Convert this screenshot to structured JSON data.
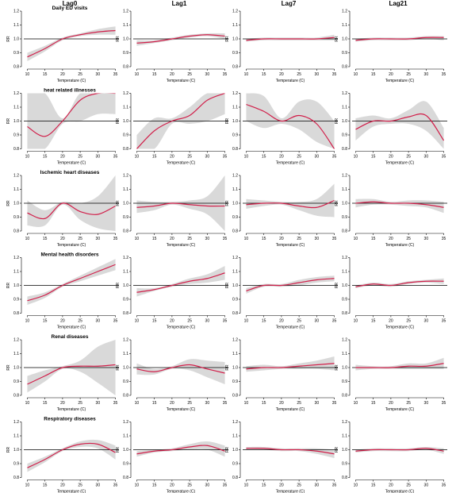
{
  "chart_data": {
    "type": "line",
    "columns": [
      "Lag0",
      "Lag1",
      "Lag7",
      "Lag21"
    ],
    "rows": [
      "Daily ED visits",
      "heat related illnesses",
      "Ischemic heart diseases",
      "Mental health disorders",
      "Renal diseases",
      "Respiratory diseases"
    ],
    "xlabel": "Temperature (C)",
    "ylabel": "RR",
    "xlim": [
      9,
      36
    ],
    "ylim": [
      0.8,
      1.2
    ],
    "x_ticks": [
      10,
      15,
      20,
      25,
      30,
      35
    ],
    "y_ticks": [
      0.8,
      0.9,
      1.0,
      1.1,
      1.2
    ],
    "y_tick_labels": [
      "0.8",
      "0.9",
      "1.0",
      "1.1",
      "1.2"
    ],
    "reference_line": 1.0,
    "colors": {
      "curve": "#d11f4a",
      "band": "#d9d9d9",
      "reference": "#000000"
    },
    "x": [
      10,
      15,
      20,
      25,
      30,
      35
    ],
    "panels": [
      [
        {
          "rr": [
            0.87,
            0.93,
            1.0,
            1.03,
            1.05,
            1.06
          ],
          "lower": [
            0.84,
            0.91,
            0.99,
            1.02,
            1.03,
            1.03
          ],
          "upper": [
            0.9,
            0.95,
            1.01,
            1.04,
            1.07,
            1.09
          ]
        },
        {
          "rr": [
            0.97,
            0.98,
            1.0,
            1.02,
            1.03,
            1.02
          ],
          "lower": [
            0.95,
            0.97,
            0.99,
            1.01,
            1.02,
            1.0
          ],
          "upper": [
            0.99,
            0.99,
            1.01,
            1.03,
            1.04,
            1.04
          ]
        },
        {
          "rr": [
            0.99,
            1.0,
            1.0,
            1.0,
            1.0,
            1.01
          ],
          "lower": [
            0.98,
            0.99,
            0.99,
            0.99,
            0.99,
            0.99
          ],
          "upper": [
            1.0,
            1.01,
            1.01,
            1.01,
            1.01,
            1.03
          ]
        },
        {
          "rr": [
            0.99,
            1.0,
            1.0,
            1.0,
            1.01,
            1.01
          ],
          "lower": [
            0.98,
            0.99,
            0.99,
            0.99,
            1.0,
            0.99
          ],
          "upper": [
            1.0,
            1.01,
            1.01,
            1.01,
            1.02,
            1.02
          ]
        }
      ],
      [
        {
          "rr": [
            0.96,
            0.89,
            1.0,
            1.15,
            1.2,
            1.2
          ],
          "lower": [
            0.8,
            0.8,
            0.98,
            1.0,
            1.05,
            1.05
          ],
          "upper": [
            1.2,
            1.2,
            1.02,
            1.2,
            1.2,
            1.2
          ]
        },
        {
          "rr": [
            0.8,
            0.93,
            1.0,
            1.04,
            1.15,
            1.2
          ],
          "lower": [
            0.8,
            0.8,
            0.98,
            0.98,
            1.0,
            1.05
          ],
          "upper": [
            0.9,
            1.02,
            1.02,
            1.1,
            1.2,
            1.2
          ]
        },
        {
          "rr": [
            1.12,
            1.07,
            1.0,
            1.04,
            0.98,
            0.8
          ],
          "lower": [
            1.0,
            0.95,
            0.98,
            0.94,
            0.85,
            0.8
          ],
          "upper": [
            1.2,
            1.18,
            1.02,
            1.14,
            1.14,
            1.0
          ]
        },
        {
          "rr": [
            0.94,
            1.0,
            1.0,
            1.03,
            1.04,
            0.86
          ],
          "lower": [
            0.86,
            0.96,
            0.98,
            0.98,
            0.93,
            0.8
          ],
          "upper": [
            1.02,
            1.04,
            1.02,
            1.08,
            1.14,
            0.95
          ]
        }
      ],
      [
        {
          "rr": [
            0.93,
            0.89,
            1.0,
            0.94,
            0.92,
            0.98
          ],
          "lower": [
            0.84,
            0.84,
            0.99,
            0.88,
            0.82,
            0.8
          ],
          "upper": [
            1.02,
            0.95,
            1.01,
            1.0,
            1.05,
            1.2
          ]
        },
        {
          "rr": [
            0.97,
            0.98,
            1.0,
            0.99,
            0.98,
            0.98
          ],
          "lower": [
            0.93,
            0.95,
            0.99,
            0.96,
            0.92,
            0.8
          ],
          "upper": [
            1.02,
            1.01,
            1.01,
            1.02,
            1.05,
            1.2
          ]
        },
        {
          "rr": [
            0.99,
            1.0,
            1.0,
            0.98,
            0.97,
            1.02
          ],
          "lower": [
            0.96,
            0.98,
            0.99,
            0.95,
            0.91,
            0.9
          ],
          "upper": [
            1.03,
            1.02,
            1.01,
            1.01,
            1.03,
            1.14
          ]
        },
        {
          "rr": [
            1.0,
            1.01,
            1.0,
            1.0,
            0.99,
            0.97
          ],
          "lower": [
            0.97,
            0.99,
            0.99,
            0.98,
            0.97,
            0.93
          ],
          "upper": [
            1.03,
            1.03,
            1.01,
            1.02,
            1.02,
            1.01
          ]
        }
      ],
      [
        {
          "rr": [
            0.89,
            0.93,
            1.0,
            1.05,
            1.1,
            1.15
          ],
          "lower": [
            0.86,
            0.91,
            0.99,
            1.03,
            1.07,
            1.11
          ],
          "upper": [
            0.92,
            0.95,
            1.01,
            1.07,
            1.13,
            1.19
          ]
        },
        {
          "rr": [
            0.95,
            0.97,
            1.0,
            1.03,
            1.05,
            1.09
          ],
          "lower": [
            0.92,
            0.96,
            0.99,
            1.01,
            1.02,
            1.04
          ],
          "upper": [
            0.98,
            0.98,
            1.01,
            1.05,
            1.08,
            1.14
          ]
        },
        {
          "rr": [
            0.96,
            1.0,
            1.0,
            1.02,
            1.04,
            1.05
          ],
          "lower": [
            0.94,
            0.99,
            0.99,
            1.0,
            1.02,
            1.03
          ],
          "upper": [
            0.98,
            1.01,
            1.01,
            1.04,
            1.06,
            1.07
          ]
        },
        {
          "rr": [
            0.99,
            1.01,
            1.0,
            1.02,
            1.03,
            1.03
          ],
          "lower": [
            0.98,
            1.0,
            0.99,
            1.01,
            1.02,
            1.01
          ],
          "upper": [
            1.0,
            1.02,
            1.01,
            1.03,
            1.04,
            1.05
          ]
        }
      ],
      [
        {
          "rr": [
            0.88,
            0.94,
            1.0,
            1.01,
            1.01,
            1.02
          ],
          "lower": [
            0.82,
            0.9,
            0.99,
            0.97,
            0.89,
            0.8
          ],
          "upper": [
            0.94,
            0.98,
            1.01,
            1.05,
            1.15,
            1.2
          ]
        },
        {
          "rr": [
            0.99,
            0.97,
            1.0,
            1.02,
            0.99,
            0.96
          ],
          "lower": [
            0.95,
            0.95,
            0.99,
            0.98,
            0.93,
            0.88
          ],
          "upper": [
            1.03,
            0.99,
            1.01,
            1.06,
            1.05,
            1.04
          ]
        },
        {
          "rr": [
            0.99,
            1.0,
            1.0,
            1.01,
            1.02,
            1.03
          ],
          "lower": [
            0.97,
            0.98,
            0.99,
            0.99,
            0.99,
            0.98
          ],
          "upper": [
            1.01,
            1.02,
            1.01,
            1.03,
            1.05,
            1.08
          ]
        },
        {
          "rr": [
            1.0,
            1.0,
            1.0,
            1.01,
            1.01,
            1.03
          ],
          "lower": [
            0.98,
            0.99,
            0.99,
            0.99,
            0.99,
            0.99
          ],
          "upper": [
            1.02,
            1.01,
            1.01,
            1.03,
            1.03,
            1.07
          ]
        }
      ],
      [
        {
          "rr": [
            0.87,
            0.93,
            1.0,
            1.04,
            1.04,
            0.98
          ],
          "lower": [
            0.84,
            0.91,
            0.99,
            1.02,
            1.01,
            0.93
          ],
          "upper": [
            0.9,
            0.95,
            1.01,
            1.06,
            1.07,
            1.03
          ]
        },
        {
          "rr": [
            0.97,
            0.99,
            1.0,
            1.02,
            1.03,
            0.99
          ],
          "lower": [
            0.95,
            0.98,
            0.99,
            1.0,
            1.0,
            0.95
          ],
          "upper": [
            0.99,
            1.0,
            1.01,
            1.04,
            1.06,
            1.03
          ]
        },
        {
          "rr": [
            1.01,
            1.01,
            1.0,
            1.0,
            0.99,
            0.97
          ],
          "lower": [
            1.0,
            1.0,
            0.99,
            0.99,
            0.97,
            0.94
          ],
          "upper": [
            1.02,
            1.02,
            1.01,
            1.01,
            1.01,
            1.0
          ]
        },
        {
          "rr": [
            0.99,
            1.0,
            1.0,
            1.0,
            1.01,
            0.99
          ],
          "lower": [
            0.98,
            0.99,
            0.99,
            0.99,
            1.0,
            0.97
          ],
          "upper": [
            1.0,
            1.01,
            1.01,
            1.01,
            1.02,
            1.01
          ]
        }
      ]
    ]
  }
}
